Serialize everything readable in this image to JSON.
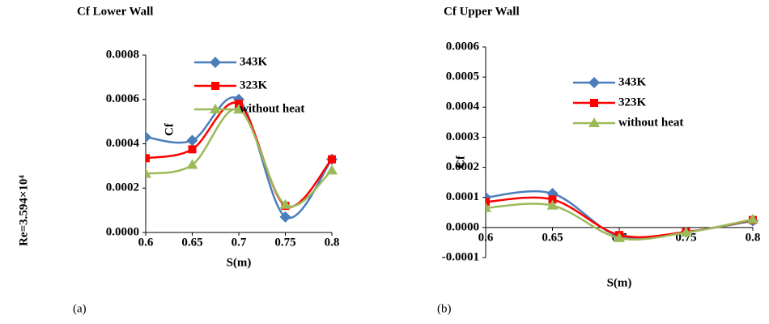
{
  "chart_data": [
    {
      "type": "line",
      "title": "Cf Lower Wall",
      "x_label": "S(m)",
      "y_label": "Cf",
      "x": [
        0.6,
        0.65,
        0.7,
        0.75,
        0.8
      ],
      "xlim": [
        0.6,
        0.8
      ],
      "xticks": [
        0.6,
        0.65,
        0.7,
        0.75,
        0.8
      ],
      "ylim": [
        0,
        0.0008
      ],
      "yticks": [
        {
          "value": 0,
          "label": "0.0000"
        },
        {
          "value": 0.0002,
          "label": "0.0002"
        },
        {
          "value": 0.0004,
          "label": "0.0004"
        },
        {
          "value": 0.0006,
          "label": "0.0006"
        },
        {
          "value": 0.0008,
          "label": "0.0008"
        }
      ],
      "grid": false,
      "smooth": true,
      "legend": "upper center",
      "series": [
        {
          "name": "343K",
          "color": "#4a7ebb",
          "marker": "diamond",
          "values": [
            0.00043,
            0.000415,
            0.0006,
            7e-05,
            0.00033
          ]
        },
        {
          "name": "323K",
          "color": "#ff0000",
          "marker": "square",
          "values": [
            0.000335,
            0.000375,
            0.00058,
            0.00012,
            0.00033
          ]
        },
        {
          "name": "without heat",
          "color": "#9bbb59",
          "marker": "triangle",
          "values": [
            0.000265,
            0.000305,
            0.000555,
            0.000125,
            0.00028
          ]
        }
      ]
    },
    {
      "type": "line",
      "title": "Cf Upper Wall",
      "x_label": "S(m)",
      "y_label": "Cf",
      "x": [
        0.6,
        0.65,
        0.7,
        0.75,
        0.8
      ],
      "xlim": [
        0.6,
        0.8
      ],
      "xticks": [
        0.6,
        0.65,
        0.7,
        0.75,
        0.8
      ],
      "ylim": [
        -0.0001,
        0.0006
      ],
      "yticks": [
        {
          "value": -0.0001,
          "label": "-0.0001"
        },
        {
          "value": 0,
          "label": "0.0000"
        },
        {
          "value": 0.0001,
          "label": "0.0001"
        },
        {
          "value": 0.0002,
          "label": "0.0002"
        },
        {
          "value": 0.0003,
          "label": "0.0003"
        },
        {
          "value": 0.0004,
          "label": "0.0004"
        },
        {
          "value": 0.0005,
          "label": "0.0005"
        },
        {
          "value": 0.0006,
          "label": "0.0006"
        }
      ],
      "grid": false,
      "smooth": true,
      "legend": "upper center",
      "series": [
        {
          "name": "343K",
          "color": "#4a7ebb",
          "marker": "diamond",
          "values": [
            0.0001,
            0.000113,
            -3e-05,
            -1.5e-05,
            2.2e-05
          ]
        },
        {
          "name": "323K",
          "color": "#ff0000",
          "marker": "square",
          "values": [
            8.5e-05,
            9.3e-05,
            -2.5e-05,
            -1.5e-05,
            2.5e-05
          ]
        },
        {
          "name": "without heat",
          "color": "#9bbb59",
          "marker": "triangle",
          "values": [
            6.5e-05,
            7.3e-05,
            -3.5e-05,
            -1.7e-05,
            2.7e-05
          ]
        }
      ]
    }
  ],
  "side_label": "Re=3.594×10⁴",
  "panel_labels": [
    "(a)",
    "(b)"
  ]
}
